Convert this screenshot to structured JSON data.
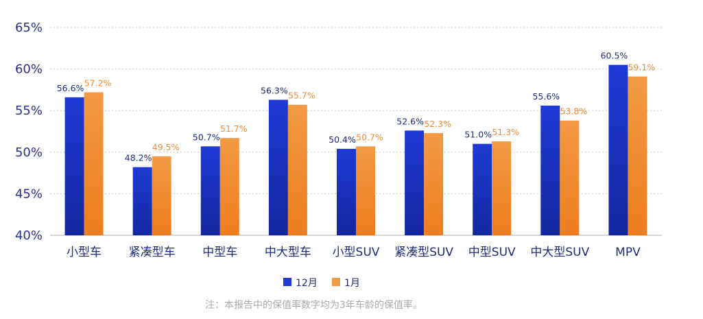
{
  "chart_data": {
    "type": "bar",
    "title": "",
    "xlabel": "",
    "ylabel": "",
    "ylim": [
      40,
      65
    ],
    "yticks": [
      40,
      45,
      50,
      55,
      60,
      65
    ],
    "ytick_suffix": "%",
    "grid": true,
    "categories": [
      "小型车",
      "紧凑型车",
      "中型车",
      "中大型车",
      "小型SUV",
      "紧凑型SUV",
      "中型SUV",
      "中大型SUV",
      "MPV"
    ],
    "series": [
      {
        "name": "12月",
        "values": [
          56.6,
          48.2,
          50.7,
          56.3,
          50.4,
          52.6,
          51.0,
          55.6,
          60.5
        ],
        "labels": [
          "56.6%",
          "48.2%",
          "50.7%",
          "56.3%",
          "50.4%",
          "52.6%",
          "51.0%",
          "55.6%",
          "60.5%"
        ],
        "color": "#1f3ad6",
        "color_bottom": "#12279e",
        "label_color": "#1f2a7a"
      },
      {
        "name": "1月",
        "values": [
          57.2,
          49.5,
          51.7,
          55.7,
          50.7,
          52.3,
          51.3,
          53.8,
          59.1
        ],
        "labels": [
          "57.2%",
          "49.5%",
          "51.7%",
          "55.7%",
          "50.7%",
          "52.3%",
          "51.3%",
          "53.8%",
          "59.1%"
        ],
        "color": "#f39a45",
        "color_bottom": "#ee7d1f",
        "label_color": "#f08a33"
      }
    ],
    "legend_position": "bottom-center",
    "note": "注：本报告中的保值率数字均为3年车龄的保值率。"
  }
}
